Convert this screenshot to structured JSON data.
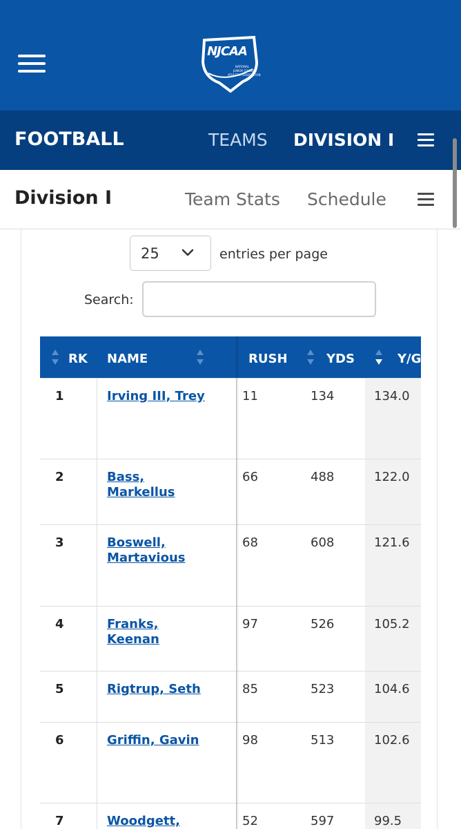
{
  "header": {
    "menu_icon": "hamburger-icon",
    "logo_text": "NJCAA",
    "logo_subtext": [
      "NATIONAL",
      "JUNIOR COLLEGE",
      "ATHLETIC ASSOCIATION"
    ],
    "colors": {
      "primary": "#0a55a6",
      "secondary": "#053f80"
    }
  },
  "sport_nav": {
    "title": "FOOTBALL",
    "links": [
      "TEAMS",
      "DIVISION I"
    ],
    "menu_icon": "hamburger-icon"
  },
  "sub_nav": {
    "title": "Division I",
    "links": [
      "Team Stats",
      "Schedule"
    ],
    "menu_icon": "hamburger-icon"
  },
  "controls": {
    "entries_value": "25",
    "entries_label": "entries per page",
    "search_label": "Search:",
    "search_value": ""
  },
  "table": {
    "columns": [
      "RK",
      "NAME",
      "RUSH",
      "YDS",
      "Y/G"
    ],
    "rows": [
      {
        "rk": "1",
        "name": "Irving III, Trey",
        "rush": "11",
        "yds": "134",
        "yg": "134.0"
      },
      {
        "rk": "2",
        "name": "Bass, Markellus",
        "rush": "66",
        "yds": "488",
        "yg": "122.0"
      },
      {
        "rk": "3",
        "name": "Boswell, Martavious",
        "rush": "68",
        "yds": "608",
        "yg": "121.6"
      },
      {
        "rk": "4",
        "name": "Franks, Keenan",
        "rush": "97",
        "yds": "526",
        "yg": "105.2"
      },
      {
        "rk": "5",
        "name": "Rigtrup, Seth",
        "rush": "85",
        "yds": "523",
        "yg": "104.6"
      },
      {
        "rk": "6",
        "name": "Griffin, Gavin",
        "rush": "98",
        "yds": "513",
        "yg": "102.6"
      },
      {
        "rk": "7",
        "name": "Woodgett,",
        "rush": "52",
        "yds": "597",
        "yg": "99.5"
      }
    ]
  }
}
